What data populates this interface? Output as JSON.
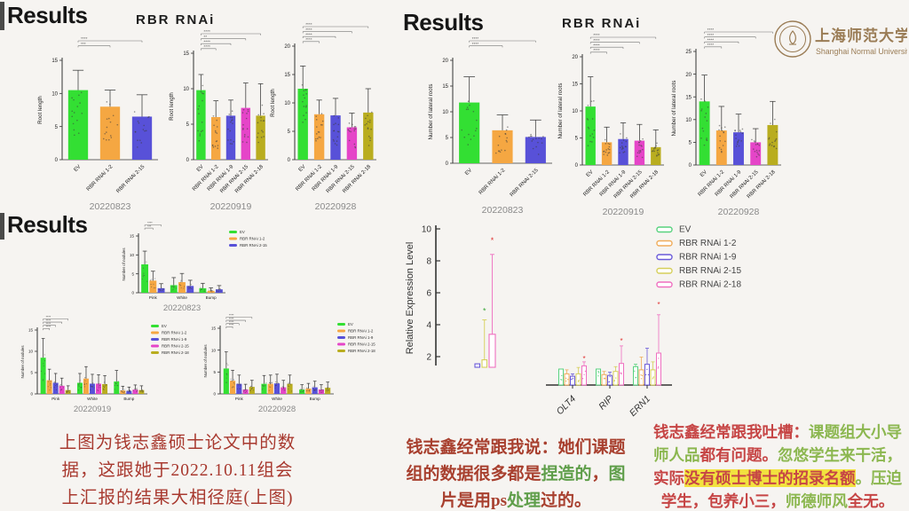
{
  "headings": {
    "results_tl": "Results",
    "results_tr": "Results",
    "results_bl": "Results",
    "rbr_title_tl": "RBR  RNAi",
    "rbr_title_tr": "RBR  RNAi"
  },
  "logo": {
    "cn": "上海师范大学",
    "en": "Shanghai Normal University",
    "color": "#9a7c55"
  },
  "palette": {
    "green": "#33df33",
    "orange": "#f5a742",
    "blue": "#5851d8",
    "magenta": "#e545c8",
    "olive": "#b9ad1f",
    "yellow": "#d2cc4a",
    "pink": "#ef62ba",
    "outline_green": "#58d27e",
    "outline_orange": "#f0ac5a",
    "outline_blue": "#6a5ad8",
    "outline_yellow": "#d6cf5a",
    "outline_pink": "#ef6fc0",
    "star_red": "#e03030",
    "star_green": "#3aa83a",
    "axis": "#333333",
    "scatter": "#3c3c3c",
    "date": "#8a8a8a"
  },
  "chart_data": [
    {
      "id": "rl0823",
      "type": "bar",
      "ylabel": "Root length",
      "date": "20220823",
      "ylim": [
        0,
        15
      ],
      "yticks": [
        0,
        5,
        10,
        15
      ],
      "categories": [
        "EV",
        "RBR RNAi 1-2",
        "RBR RNAi 2-15"
      ],
      "values": [
        10.5,
        8.0,
        6.5
      ],
      "errors": [
        3.0,
        2.5,
        3.3
      ],
      "colors": [
        "green",
        "orange",
        "blue"
      ],
      "sig": [
        [
          0,
          2,
          "****"
        ],
        [
          0,
          1,
          "***"
        ]
      ]
    },
    {
      "id": "rl0919",
      "type": "bar",
      "ylabel": "Root length",
      "date": "20220919",
      "ylim": [
        0,
        15
      ],
      "yticks": [
        0,
        5,
        10,
        15
      ],
      "categories": [
        "EV",
        "RBR RNAi 1-2",
        "RBR RNAi 1-9",
        "RBR RNAi 2-15",
        "RBR RNAi 2-18"
      ],
      "values": [
        9.8,
        6.0,
        6.2,
        7.3,
        6.2
      ],
      "errors": [
        2.2,
        2.3,
        2.2,
        3.5,
        4.5
      ],
      "colors": [
        "green",
        "orange",
        "blue",
        "magenta",
        "olive"
      ],
      "sig": [
        [
          0,
          4,
          "****"
        ],
        [
          0,
          3,
          "**"
        ],
        [
          0,
          2,
          "****"
        ],
        [
          0,
          1,
          "****"
        ]
      ]
    },
    {
      "id": "rl0928",
      "type": "bar",
      "ylabel": "Root length",
      "date": "20220928",
      "ylim": [
        0,
        20
      ],
      "yticks": [
        0,
        5,
        10,
        15,
        20
      ],
      "categories": [
        "EV",
        "RBR RNAi 1-2",
        "RBR RNAi 1-9",
        "RBR RNAi 2-15",
        "RBR RNAi 2-18"
      ],
      "values": [
        12.5,
        8.0,
        7.8,
        5.7,
        8.3
      ],
      "errors": [
        4.0,
        2.5,
        3.0,
        2.5,
        4.2
      ],
      "colors": [
        "green",
        "orange",
        "blue",
        "magenta",
        "olive"
      ],
      "sig": [
        [
          0,
          4,
          "****"
        ],
        [
          0,
          3,
          "****"
        ],
        [
          0,
          2,
          "****"
        ],
        [
          0,
          1,
          "****"
        ]
      ]
    },
    {
      "id": "lr0823",
      "type": "bar",
      "ylabel": "Number of lateral roots",
      "date": "20220823",
      "ylim": [
        0,
        20
      ],
      "yticks": [
        0,
        5,
        10,
        15,
        20
      ],
      "categories": [
        "EV",
        "RBR RNAi 1-2",
        "RBR RNAi 2-15"
      ],
      "values": [
        11.8,
        6.4,
        5.1
      ],
      "errors": [
        5.0,
        3.0,
        3.3
      ],
      "colors": [
        "green",
        "orange",
        "blue"
      ],
      "sig": [
        [
          0,
          2,
          "****"
        ],
        [
          0,
          1,
          "****"
        ]
      ]
    },
    {
      "id": "lr0919",
      "type": "bar",
      "ylabel": "Number of lateral roots",
      "date": "20220919",
      "ylim": [
        0,
        20
      ],
      "yticks": [
        0,
        5,
        10,
        15,
        20
      ],
      "categories": [
        "EV",
        "RBR RNAi 1-2",
        "RBR RNAi 1-9",
        "RBR RNAi 2-15",
        "RBR RNAi 2-18"
      ],
      "values": [
        10.8,
        4.2,
        4.8,
        4.5,
        3.3
      ],
      "errors": [
        5.5,
        2.8,
        3.0,
        3.0,
        3.2
      ],
      "colors": [
        "green",
        "orange",
        "blue",
        "magenta",
        "olive"
      ],
      "sig": [
        [
          0,
          4,
          "****"
        ],
        [
          0,
          3,
          "****"
        ],
        [
          0,
          2,
          "****"
        ],
        [
          0,
          1,
          "****"
        ]
      ]
    },
    {
      "id": "lr0928",
      "type": "bar",
      "ylabel": "Number of lateral roots",
      "date": "20220928",
      "ylim": [
        0,
        25
      ],
      "yticks": [
        0,
        5,
        10,
        15,
        20,
        25
      ],
      "categories": [
        "EV",
        "RBR RNAi 1-2",
        "RBR RNAi 1-9",
        "RBR RNAi 2-15",
        "RBR RNAi 2-18"
      ],
      "values": [
        14.0,
        7.6,
        7.2,
        5.0,
        8.8
      ],
      "errors": [
        5.8,
        5.3,
        4.0,
        3.0,
        5.2
      ],
      "colors": [
        "green",
        "orange",
        "blue",
        "magenta",
        "olive"
      ],
      "sig": [
        [
          0,
          4,
          "****"
        ],
        [
          0,
          3,
          "****"
        ],
        [
          0,
          2,
          "****"
        ],
        [
          0,
          1,
          "****"
        ]
      ]
    },
    {
      "id": "nd0823",
      "type": "grouped_bar",
      "ylabel": "Number of nodules",
      "date": "20220823",
      "ylim": [
        0,
        15
      ],
      "yticks": [
        0,
        5,
        10,
        15
      ],
      "groups": [
        "Pink",
        "White",
        "Bump"
      ],
      "series": [
        {
          "name": "EV",
          "color": "green",
          "values": [
            7.5,
            2.0,
            1.2
          ],
          "errors": [
            3.5,
            2.0,
            1.3
          ]
        },
        {
          "name": "RBR RNAi 1-2",
          "color": "orange",
          "values": [
            3.2,
            2.8,
            0.5
          ],
          "errors": [
            2.5,
            2.3,
            0.8
          ]
        },
        {
          "name": "RBR RNAi 2-15",
          "color": "blue",
          "values": [
            1.2,
            1.8,
            0.9
          ],
          "errors": [
            1.2,
            1.5,
            1.0
          ]
        }
      ],
      "sig": [
        [
          0,
          2,
          "****"
        ],
        [
          0,
          1,
          "***"
        ]
      ]
    },
    {
      "id": "nd0919",
      "type": "grouped_bar",
      "ylabel": "Number of nodules",
      "date": "20220919",
      "ylim": [
        0,
        15
      ],
      "yticks": [
        0,
        5,
        10,
        15
      ],
      "groups": [
        "Pink",
        "White",
        "Bump"
      ],
      "series": [
        {
          "name": "EV",
          "color": "green",
          "values": [
            8.5,
            2.6,
            2.9
          ],
          "errors": [
            4.5,
            2.2,
            2.6
          ]
        },
        {
          "name": "RBR RNAi 1-2",
          "color": "orange",
          "values": [
            3.2,
            3.6,
            0.8
          ],
          "errors": [
            2.6,
            2.8,
            1.0
          ]
        },
        {
          "name": "RBR RNAi 1-9",
          "color": "blue",
          "values": [
            2.6,
            2.4,
            0.7
          ],
          "errors": [
            2.2,
            2.2,
            0.9
          ]
        },
        {
          "name": "RBR RNAi 2-15",
          "color": "magenta",
          "values": [
            1.9,
            2.4,
            1.0
          ],
          "errors": [
            1.8,
            2.1,
            1.1
          ]
        },
        {
          "name": "RBR RNAi 2-18",
          "color": "olive",
          "values": [
            0.9,
            2.3,
            0.9
          ],
          "errors": [
            1.0,
            2.0,
            1.0
          ]
        }
      ],
      "sig": [
        [
          0,
          4,
          "****"
        ],
        [
          0,
          3,
          "****"
        ],
        [
          0,
          2,
          "****"
        ],
        [
          0,
          1,
          "****"
        ]
      ]
    },
    {
      "id": "nd0928",
      "type": "grouped_bar",
      "ylabel": "Number of nodules",
      "date": "20220928",
      "ylim": [
        0,
        15
      ],
      "yticks": [
        0,
        5,
        10,
        15
      ],
      "groups": [
        "Pink",
        "White",
        "Bump"
      ],
      "series": [
        {
          "name": "EV",
          "color": "green",
          "values": [
            5.8,
            2.3,
            1.0
          ],
          "errors": [
            3.8,
            1.9,
            1.1
          ]
        },
        {
          "name": "RBR RNAi 1-2",
          "color": "orange",
          "values": [
            3.0,
            2.3,
            1.2
          ],
          "errors": [
            2.4,
            2.0,
            1.2
          ]
        },
        {
          "name": "RBR RNAi 1-9",
          "color": "blue",
          "values": [
            2.3,
            2.4,
            1.5
          ],
          "errors": [
            2.0,
            2.1,
            1.4
          ]
        },
        {
          "name": "RBR RNAi 2-15",
          "color": "magenta",
          "values": [
            1.0,
            1.5,
            1.0
          ],
          "errors": [
            1.2,
            1.6,
            1.1
          ]
        },
        {
          "name": "RBR RNAi 2-18",
          "color": "olive",
          "values": [
            1.6,
            2.3,
            1.4
          ],
          "errors": [
            1.5,
            2.0,
            1.3
          ]
        }
      ],
      "sig": [
        [
          0,
          4,
          "****"
        ],
        [
          0,
          3,
          "****"
        ],
        [
          0,
          2,
          "****"
        ],
        [
          0,
          1,
          "****"
        ]
      ]
    },
    {
      "id": "expr",
      "type": "expression",
      "ylabel": "Relative Expression Level",
      "yticks": [
        2,
        4,
        6,
        8,
        10
      ],
      "ylim_top": 10,
      "left_group": [
        {
          "color": "outline_blue",
          "value": 1.55
        },
        {
          "color": "outline_yellow",
          "value": 1.8,
          "err_top": 4.3,
          "star": 4.7,
          "star_color": "star_green"
        },
        {
          "color": "outline_pink",
          "value": 3.4,
          "err_top": 8.4,
          "star": 9.1,
          "star_color": "star_red"
        }
      ],
      "genes": [
        "OLT4",
        "RIP",
        "ERN1"
      ],
      "series": [
        {
          "name": "EV",
          "color": "outline_green",
          "values": [
            1.0,
            1.0,
            1.15
          ],
          "errors": [
            0,
            0,
            0.15
          ]
        },
        {
          "name": "RBR RNAi 1-2",
          "color": "outline_orange",
          "values": [
            0.7,
            0.65,
            0.95
          ],
          "errors": [
            0.25,
            0.2,
            0.8
          ]
        },
        {
          "name": "RBR RNAi 1-9",
          "color": "outline_blue",
          "values": [
            0.55,
            0.6,
            1.3
          ],
          "errors": [
            0.15,
            0.2,
            1.0
          ]
        },
        {
          "name": "RBR RNAi 2-15",
          "color": "outline_yellow",
          "values": [
            0.7,
            0.85,
            0.95
          ],
          "errors": [
            0.4,
            0.3,
            0.5
          ]
        },
        {
          "name": "RBR RNAi 2-18",
          "color": "outline_pink",
          "values": [
            1.2,
            1.35,
            2.0
          ],
          "errors": [
            0.25,
            1.1,
            2.4
          ],
          "stars": [
            1.5,
            2.6,
            4.9
          ]
        }
      ],
      "legend": [
        "EV",
        "RBR RNAi 1-2",
        "RBR RNAi 1-9",
        "RBR RNAi 2-15",
        "RBR RNAi 2-18"
      ],
      "legend_colors": [
        "outline_green",
        "outline_orange",
        "outline_blue",
        "outline_yellow",
        "outline_pink"
      ],
      "legend_position": "right"
    }
  ],
  "notes": {
    "left": {
      "default_color": "#a8392f",
      "lines": [
        [
          {
            "t": "上图为钱志鑫硕士论文中的数"
          }
        ],
        [
          {
            "t": "据，这跟她于2022.10.11组会"
          }
        ],
        [
          {
            "t": "上汇报的结果大相径庭(上图)"
          }
        ]
      ]
    },
    "middle": {
      "colors": {
        "red": "#a8402f",
        "green": "#5f9e4a"
      },
      "lines": [
        [
          {
            "t": "钱志鑫经常跟我说：她们课题",
            "c": "red"
          }
        ],
        [
          {
            "t": "组的数据很多都是",
            "c": "red"
          },
          {
            "t": "捏造的",
            "c": "green"
          },
          {
            "t": "，",
            "c": "red"
          },
          {
            "t": "图",
            "c": "green"
          }
        ],
        [
          {
            "t": "片是用",
            "c": "red"
          },
          {
            "t": "ps",
            "c": "red"
          },
          {
            "t": "处理",
            "c": "green"
          },
          {
            "t": "过的。",
            "c": "red"
          }
        ]
      ]
    },
    "right": {
      "colors": {
        "red": "#c64545",
        "green": "#8cb750"
      },
      "highlight": "#f2e23f",
      "lines": [
        [
          {
            "t": "钱志鑫经常跟我吐槽：",
            "c": "red"
          },
          {
            "t": "课题组大小导",
            "c": "green"
          }
        ],
        [
          {
            "t": "师人品",
            "c": "green"
          },
          {
            "t": "都有问题。",
            "c": "red"
          },
          {
            "t": "忽悠学生来干活，",
            "c": "green"
          }
        ],
        [
          {
            "t": "实际",
            "c": "red"
          },
          {
            "t": "没有硕士博士的招录名额",
            "c": "red",
            "hl": true
          },
          {
            "t": "。",
            "c": "green"
          },
          {
            "t": "压迫",
            "c": "green"
          }
        ],
        [
          {
            "t": "学生，",
            "c": "red"
          },
          {
            "t": "包养小三，",
            "c": "red"
          },
          {
            "t": "师德师风",
            "c": "green"
          },
          {
            "t": "全无。",
            "c": "red"
          }
        ]
      ]
    }
  }
}
